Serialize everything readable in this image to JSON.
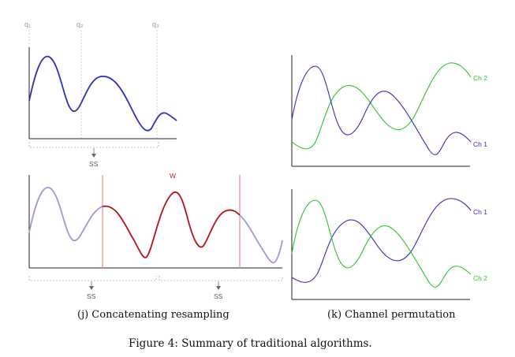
{
  "panel_j": {
    "top": {
      "q_labels": [
        "q₁",
        "q₂",
        "q₃"
      ],
      "ss_label": "SS"
    },
    "bottom": {
      "window_label": "W",
      "ss_labels": [
        "SS",
        "SS"
      ]
    },
    "caption": "(j) Concatenating resampling"
  },
  "panel_k": {
    "top": {
      "series": [
        "Ch 2",
        "Ch 1"
      ]
    },
    "bottom": {
      "series": [
        "Ch 1",
        "Ch 2"
      ]
    },
    "caption": "(k) Channel permutation"
  },
  "figure_caption": "Figure 4: Summary of traditional algorithms.",
  "colors": {
    "blue": "#2f2fb8",
    "light_blue": "#9a9ad8",
    "red": "#b8101a",
    "red_line": "#e88a8a",
    "green": "#2cc42c",
    "axis": "#222222",
    "guide": "#c8c8c8"
  }
}
